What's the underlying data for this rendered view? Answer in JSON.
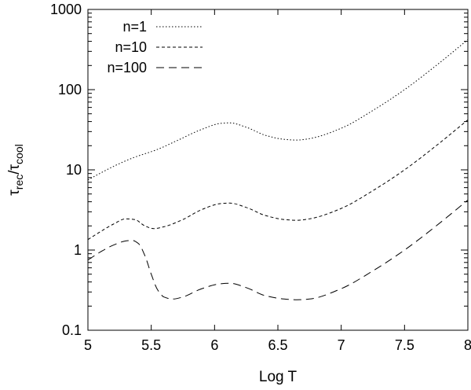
{
  "chart_data": {
    "type": "line",
    "xlabel": "Log T",
    "ylabel": {
      "main": "τ",
      "sub1": "rec",
      "slash": "/",
      "main2": "τ",
      "sub2": "cool"
    },
    "xlim": [
      5,
      8
    ],
    "ylim": [
      0.1,
      1000
    ],
    "yscale": "log",
    "xticks": [
      5,
      5.5,
      6,
      6.5,
      7,
      7.5,
      8
    ],
    "xtick_labels": [
      "5",
      "5.5",
      "6",
      "6.5",
      "7",
      "7.5",
      "8"
    ],
    "yticks": [
      0.1,
      1,
      10,
      100,
      1000
    ],
    "ytick_labels": [
      "0.1",
      "1",
      "10",
      "100",
      "1000"
    ],
    "grid": false,
    "legend_position": "top-left",
    "series": [
      {
        "name": "n=1",
        "dash": "dotted",
        "x": [
          5.0,
          5.2,
          5.35,
          5.55,
          5.7,
          5.9,
          6.05,
          6.12,
          6.25,
          6.4,
          6.55,
          6.65,
          6.75,
          7.0,
          7.25,
          7.5,
          7.75,
          8.0
        ],
        "y": [
          7.5,
          11,
          14,
          18,
          23,
          32,
          38,
          38.5,
          34,
          27,
          24,
          23.5,
          24.5,
          33,
          55,
          100,
          200,
          420
        ]
      },
      {
        "name": "n=10",
        "dash": "short-dashed",
        "x": [
          5.0,
          5.1,
          5.2,
          5.3,
          5.37,
          5.45,
          5.52,
          5.6,
          5.75,
          5.9,
          6.05,
          6.12,
          6.25,
          6.4,
          6.55,
          6.65,
          6.75,
          7.0,
          7.25,
          7.5,
          7.75,
          8.0
        ],
        "y": [
          1.35,
          1.7,
          2.1,
          2.45,
          2.4,
          2.0,
          1.85,
          1.95,
          2.4,
          3.2,
          3.8,
          3.85,
          3.4,
          2.7,
          2.4,
          2.35,
          2.45,
          3.3,
          5.5,
          10,
          20,
          42
        ]
      },
      {
        "name": "n=100",
        "dash": "long-dashed",
        "x": [
          5.0,
          5.1,
          5.2,
          5.3,
          5.35,
          5.4,
          5.45,
          5.5,
          5.55,
          5.6,
          5.67,
          5.75,
          5.9,
          6.05,
          6.12,
          6.25,
          6.4,
          6.55,
          6.65,
          6.75,
          7.0,
          7.25,
          7.5,
          7.75,
          8.0
        ],
        "y": [
          0.75,
          0.95,
          1.15,
          1.3,
          1.32,
          1.2,
          0.85,
          0.5,
          0.32,
          0.26,
          0.245,
          0.26,
          0.33,
          0.38,
          0.385,
          0.34,
          0.27,
          0.245,
          0.24,
          0.245,
          0.33,
          0.55,
          1.0,
          2.0,
          4.2
        ]
      }
    ]
  }
}
